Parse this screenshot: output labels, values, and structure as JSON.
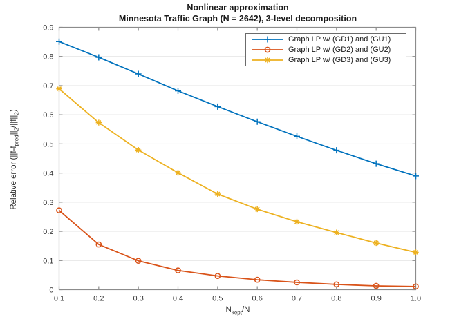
{
  "chart_data": {
    "type": "line",
    "title_line1": "Nonlinear approximation",
    "title_line2": "Minnesota Traffic Graph (N = 2642), 3-level decomposition",
    "xlabel_parts": {
      "p1": "N",
      "sub": "kept",
      "p2": "/N"
    },
    "ylabel_parts": {
      "p1": "Relative error (||f-f",
      "sub1": "pred",
      "p2": "||",
      "sub2": "2",
      "p3": "/||f||",
      "sub3": "2",
      "p4": ")"
    },
    "x": [
      0.1,
      0.2,
      0.3,
      0.4,
      0.5,
      0.6,
      0.7,
      0.8,
      0.9,
      1.0
    ],
    "series": [
      {
        "name": "Graph LP w/ (GD1) and (GU1)",
        "color": "#0072BD",
        "marker": "plus",
        "values": [
          0.851,
          0.797,
          0.74,
          0.682,
          0.628,
          0.576,
          0.526,
          0.478,
          0.432,
          0.39
        ]
      },
      {
        "name": "Graph LP w/ (GD2) and (GU2)",
        "color": "#D95319",
        "marker": "circle",
        "values": [
          0.272,
          0.155,
          0.099,
          0.066,
          0.047,
          0.034,
          0.025,
          0.018,
          0.013,
          0.011
        ]
      },
      {
        "name": "Graph LP w/ (GD3) and (GU3)",
        "color": "#EDB120",
        "marker": "asterisk",
        "values": [
          0.689,
          0.573,
          0.479,
          0.401,
          0.328,
          0.276,
          0.233,
          0.196,
          0.16,
          0.128
        ]
      }
    ],
    "xlim": [
      0.1,
      1.0
    ],
    "ylim": [
      0,
      0.9
    ],
    "x_tick_labels": [
      "0.1",
      "0.2",
      "0.3",
      "0.4",
      "0.5",
      "0.6",
      "0.7",
      "0.8",
      "0.9",
      "1.0"
    ],
    "y_tick_labels": [
      "0",
      "0.1",
      "0.2",
      "0.3",
      "0.4",
      "0.5",
      "0.6",
      "0.7",
      "0.8",
      "0.9"
    ],
    "grid": "horizontal",
    "legend_position": "northeast",
    "axis_color": "#8c8c8c",
    "grid_color": "#e3e3e3",
    "tick_label_color": "#383838"
  }
}
